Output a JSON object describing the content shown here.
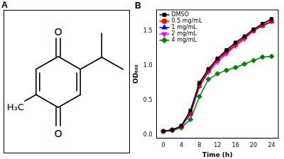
{
  "panel_labels": [
    "A",
    "B"
  ],
  "structure": {
    "atom_labels": {
      "top_oxygen": "O",
      "bottom_oxygen": "O",
      "methyl": "H₃C"
    }
  },
  "chart_data": {
    "type": "line",
    "x_label": "Time (h)",
    "y_label": "OD₆₀₀",
    "x": [
      0,
      2,
      4,
      6,
      8,
      10,
      12,
      14,
      16,
      18,
      20,
      22,
      24
    ],
    "series": [
      {
        "name": "DMSO",
        "color": "#000000",
        "marker": "square",
        "values": [
          0.05,
          0.07,
          0.13,
          0.35,
          0.75,
          0.95,
          1.1,
          1.22,
          1.33,
          1.42,
          1.52,
          1.6,
          1.67
        ]
      },
      {
        "name": "0.5 mg/mL",
        "color": "#ff0000",
        "marker": "circle",
        "values": [
          0.05,
          0.07,
          0.12,
          0.32,
          0.72,
          0.93,
          1.08,
          1.2,
          1.3,
          1.4,
          1.5,
          1.58,
          1.64
        ]
      },
      {
        "name": "1 mg/mL",
        "color": "#0000ff",
        "marker": "triangle-up",
        "values": [
          0.05,
          0.07,
          0.12,
          0.3,
          0.7,
          0.92,
          1.08,
          1.19,
          1.3,
          1.4,
          1.5,
          1.57,
          1.63
        ]
      },
      {
        "name": "2 mg/mL",
        "color": "#ff00ff",
        "marker": "triangle-down",
        "values": [
          0.05,
          0.07,
          0.12,
          0.3,
          0.7,
          0.9,
          1.05,
          1.17,
          1.28,
          1.38,
          1.5,
          1.57,
          1.63
        ]
      },
      {
        "name": "4 mg/mL",
        "color": "#008000",
        "marker": "diamond",
        "values": [
          0.05,
          0.06,
          0.1,
          0.22,
          0.55,
          0.8,
          0.88,
          0.93,
          0.97,
          1.02,
          1.07,
          1.12,
          1.13
        ]
      }
    ],
    "xlim": [
      -1.5,
      25.5
    ],
    "xticks": [
      0,
      4,
      8,
      12,
      16,
      20,
      24
    ],
    "ylim": [
      -0.05,
      1.8
    ],
    "yticks": [
      {
        "value": 0,
        "label": "0.0"
      },
      {
        "value": 0.5,
        "label": "0.5"
      },
      {
        "value": 1,
        "label": "1.0"
      },
      {
        "value": 1.5,
        "label": "1.5"
      }
    ],
    "grid": false,
    "legend": "upper left"
  }
}
